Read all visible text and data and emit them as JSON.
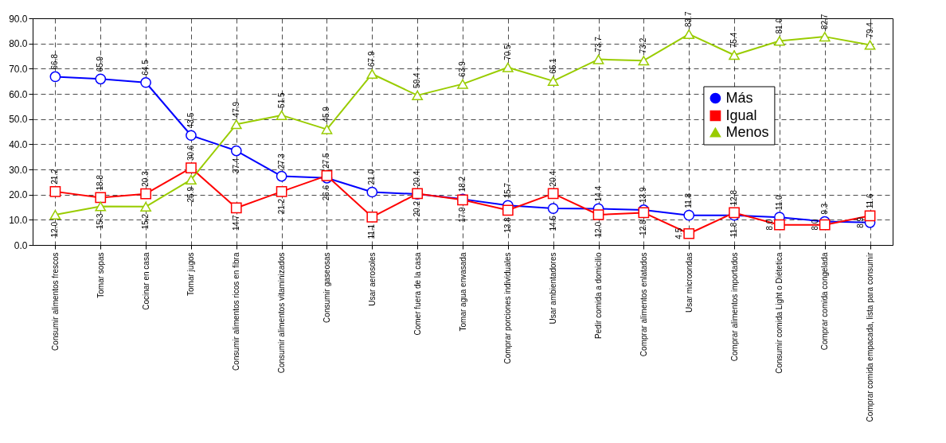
{
  "chart_data": {
    "type": "line",
    "categories": [
      "Consumir alimentos frescos",
      "Tomar sopas",
      "Cocinar en casa",
      "Tomar jugos",
      "Consumir alimentos ricos en fibra",
      "Consumir alimentos vitaminizados",
      "Consumir gaseosas",
      "Usar aerosoles",
      "Comer fuera de la casa",
      "Tomar agua envasada",
      "Comprar porciones individuales",
      "Usar ambientadores",
      "Pedir comida a domicilio",
      "Comprar alimentos enlatados",
      "Usar microondas",
      "Comprar alimentos importados",
      "Consumir comida Light o Diétetica",
      "Comprar comida congelada",
      "Comprar comida empacada, lista para consumir"
    ],
    "series": [
      {
        "name": "Más",
        "color": "#0000ff",
        "marker": "circle",
        "values": [
          66.8,
          65.9,
          64.5,
          43.5,
          37.4,
          27.3,
          26.6,
          21,
          20.2,
          18.2,
          15.7,
          14.5,
          14.4,
          13.9,
          11.8,
          11.8,
          11,
          9.3,
          8.9
        ],
        "value_labels": [
          "66.8",
          "65.9",
          "64.5",
          "43.5",
          "37.4",
          "27.3",
          "26.6",
          "21.0",
          "20.2",
          "18.2",
          "15.7",
          "14.5",
          "14.4",
          "13.9",
          "11.8",
          "11.8",
          "11.0",
          "9.3",
          "8.9"
        ]
      },
      {
        "name": "Igual",
        "color": "#ff0000",
        "marker": "square",
        "values": [
          21.2,
          18.8,
          20.3,
          30.6,
          14.7,
          21.2,
          27.5,
          11.1,
          20.4,
          17.9,
          13.8,
          20.4,
          12,
          12.8,
          4.5,
          12.8,
          8,
          8,
          11.6
        ],
        "value_labels": [
          "21.2",
          "18.8",
          "20.3",
          "30.6",
          "14.7",
          "21.2",
          "27.5",
          "11.1",
          "20.4",
          "17.9",
          "13.8",
          "20.4",
          "12.0",
          "12.8",
          "4.5",
          "12.8",
          "8.0",
          "8.0",
          "11.6"
        ]
      },
      {
        "name": "Menos",
        "color": "#99cc00",
        "marker": "triangle",
        "values": [
          12,
          15.3,
          15.2,
          25.9,
          47.9,
          51.5,
          45.9,
          67.9,
          59.4,
          63.9,
          70.5,
          65.1,
          73.7,
          73.2,
          83.7,
          75.4,
          81,
          82.7,
          79.4
        ],
        "value_labels": [
          "12.0",
          "15.3",
          "15.2",
          "25.9",
          "47.9",
          "51.5",
          "45.9",
          "67.9",
          "59.4",
          "63.9",
          "70.5",
          "65.1",
          "73.7",
          "73.2",
          "83.7",
          "75.4",
          "81.0",
          "82.7",
          "79.4"
        ]
      }
    ],
    "ylim": [
      0,
      90
    ],
    "yticks": [
      {
        "value": 0,
        "label": "0.0"
      },
      {
        "value": 10,
        "label": "10.0"
      },
      {
        "value": 20,
        "label": "20.0"
      },
      {
        "value": 30,
        "label": "30.0"
      },
      {
        "value": 40,
        "label": "40.0"
      },
      {
        "value": 50,
        "label": "50.0"
      },
      {
        "value": 60,
        "label": "60.0"
      },
      {
        "value": 70,
        "label": "70.0"
      },
      {
        "value": 80,
        "label": "80.0"
      },
      {
        "value": 90,
        "label": "90.0"
      }
    ],
    "grid": true,
    "legend": "top right",
    "line_style": "solid"
  }
}
